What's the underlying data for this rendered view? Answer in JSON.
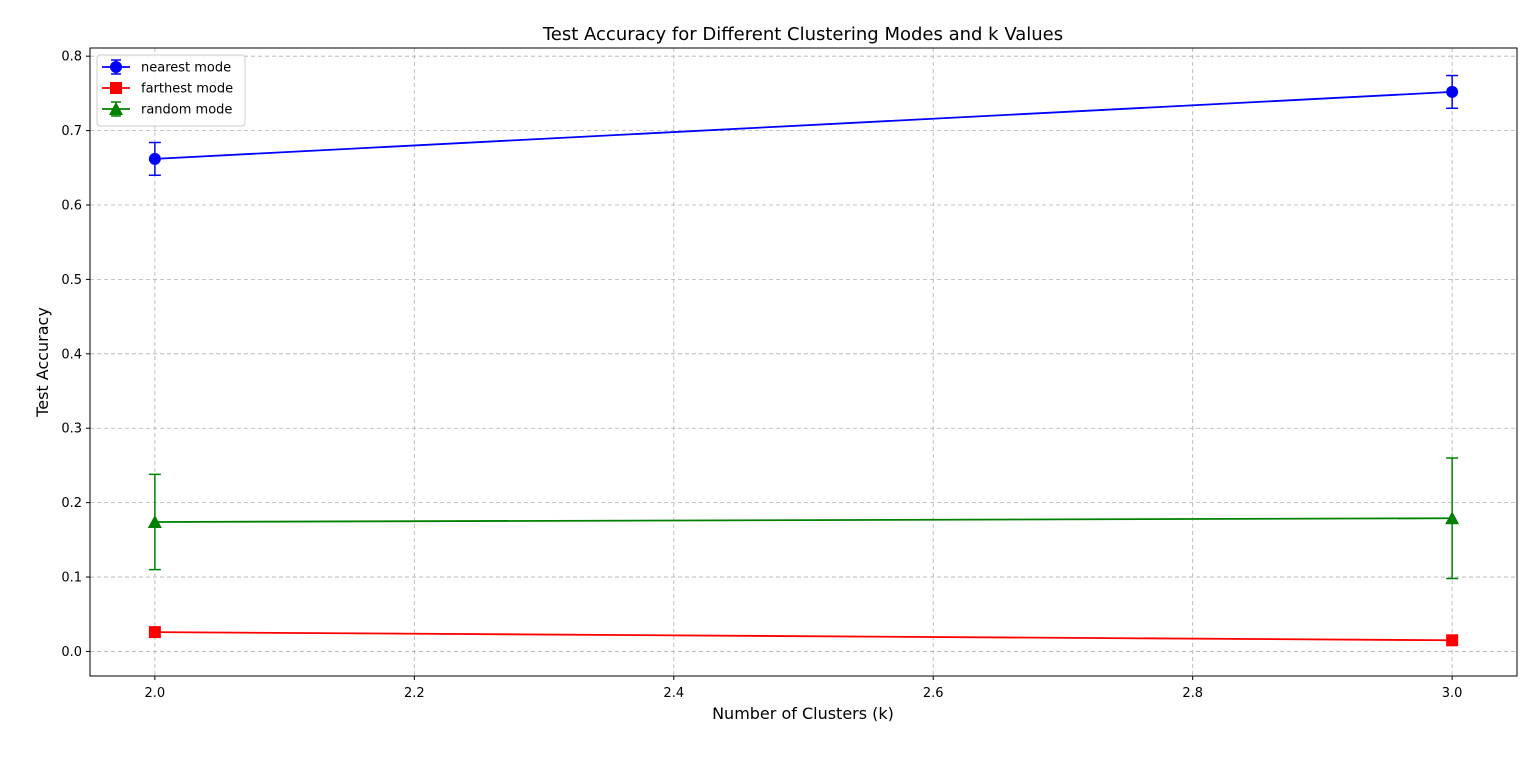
{
  "chart_data": {
    "type": "line",
    "title": "Test Accuracy for Different Clustering Modes and k Values",
    "xlabel": "Number of Clusters (k)",
    "ylabel": "Test Accuracy",
    "xlim": [
      1.95,
      3.05
    ],
    "ylim": [
      -0.033,
      0.811
    ],
    "x_ticks": [
      2.0,
      2.2,
      2.4,
      2.6,
      2.8,
      3.0
    ],
    "x_tick_labels": [
      "2.0",
      "2.2",
      "2.4",
      "2.6",
      "2.8",
      "3.0"
    ],
    "y_ticks": [
      0.0,
      0.1,
      0.2,
      0.3,
      0.4,
      0.5,
      0.6,
      0.7,
      0.8
    ],
    "y_tick_labels": [
      "0.0",
      "0.1",
      "0.2",
      "0.3",
      "0.4",
      "0.5",
      "0.6",
      "0.7",
      "0.8"
    ],
    "grid": true,
    "legend_position": "top-left",
    "x": [
      2,
      3
    ],
    "series": [
      {
        "name": "nearest mode",
        "color": "#0000ff",
        "marker": "circle",
        "values": [
          0.662,
          0.752
        ],
        "errors": [
          0.022,
          0.022
        ]
      },
      {
        "name": "farthest mode",
        "color": "#ff0000",
        "marker": "square",
        "values": [
          0.026,
          0.015
        ],
        "errors": [
          0.0,
          0.0
        ]
      },
      {
        "name": "random mode",
        "color": "#008000",
        "marker": "triangle",
        "values": [
          0.174,
          0.179
        ],
        "errors": [
          0.064,
          0.081
        ]
      }
    ]
  }
}
